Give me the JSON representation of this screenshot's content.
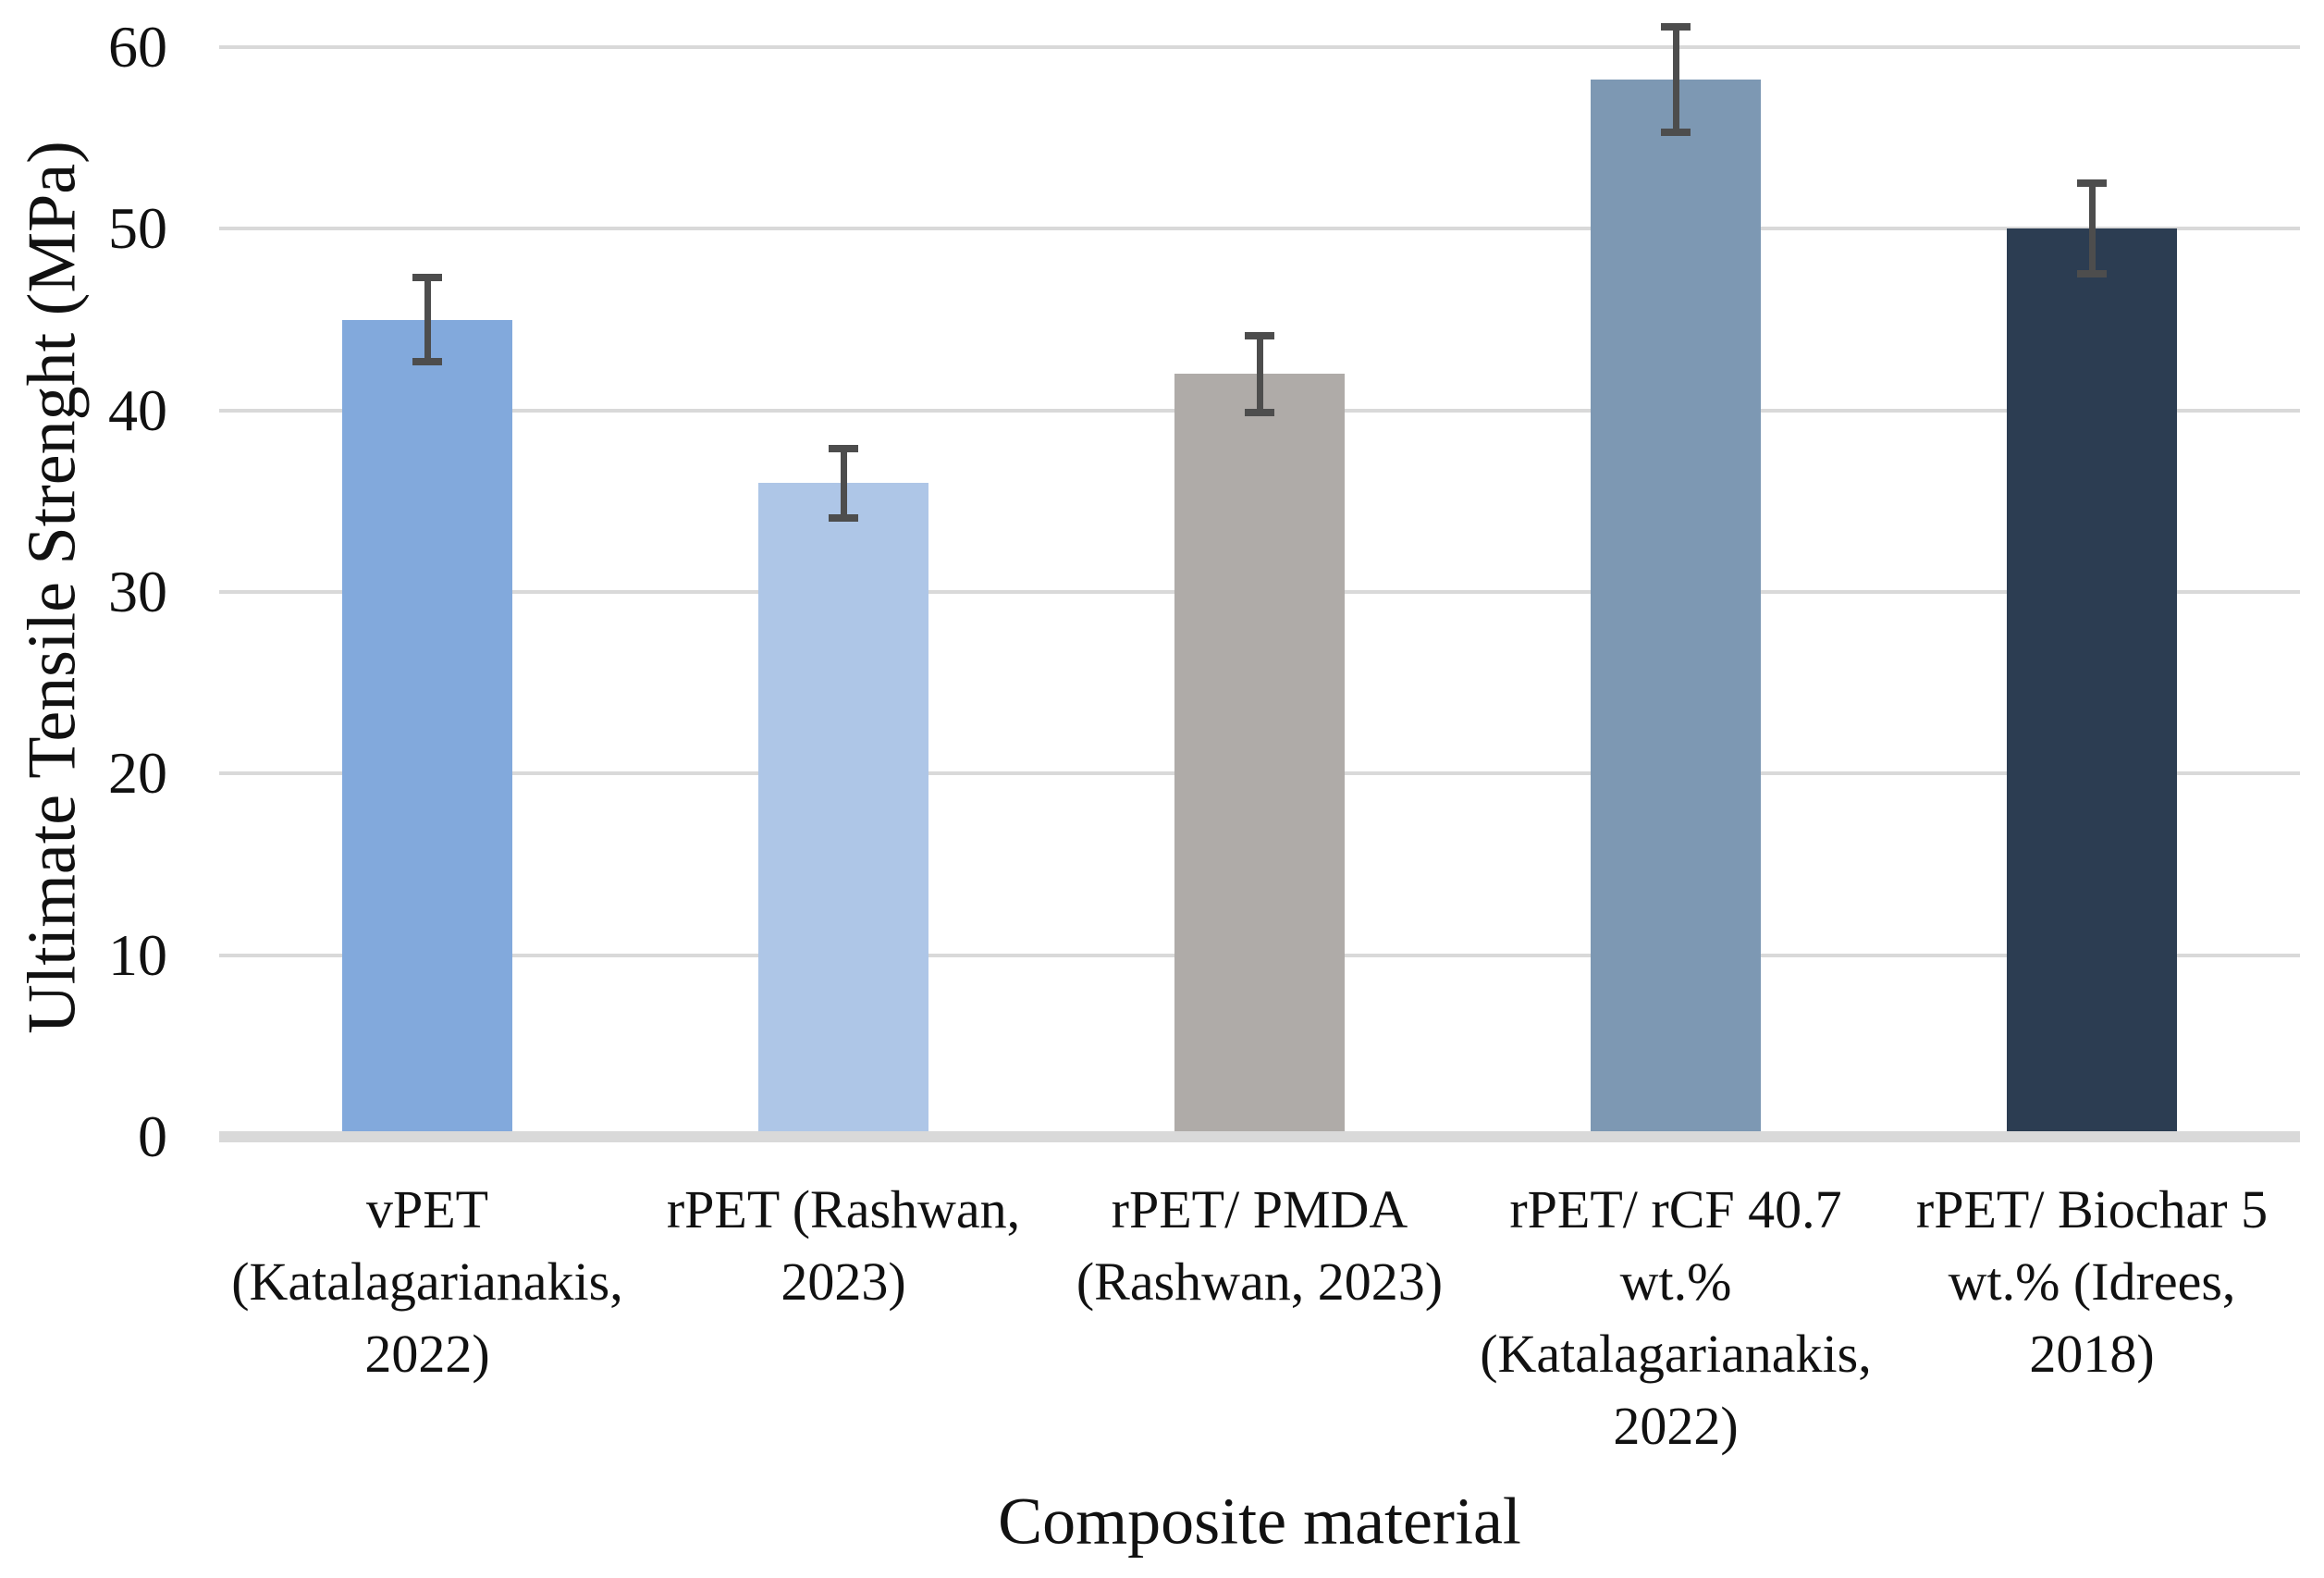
{
  "chart_data": {
    "type": "bar",
    "xlabel": "Composite material",
    "ylabel": "Ultimate Tensile Strenght (MPa)",
    "ylim": [
      0,
      60
    ],
    "yticks": [
      0,
      10,
      20,
      30,
      40,
      50,
      60
    ],
    "grid": true,
    "legend_position": "none",
    "categories": [
      "vPET (Katalagarianakis, 2022)",
      "rPET (Rashwan, 2023)",
      "rPET/ PMDA (Rashwan, 2023)",
      "rPET/ rCF 40.7 wt.% (Katalagarianakis, 2022)",
      "rPET/ Biochar 5 wt.% (Idrees, 2018)"
    ],
    "category_label_lines": [
      [
        "vPET",
        "(Katalagarianakis,",
        "2022)"
      ],
      [
        "rPET (Rashwan,",
        "2023)"
      ],
      [
        "rPET/ PMDA",
        "(Rashwan, 2023)"
      ],
      [
        "rPET/ rCF 40.7",
        "wt.%",
        "(Katalagarianakis,",
        "2022)"
      ],
      [
        "rPET/ Biochar 5",
        "wt.% (Idrees,",
        "2018)"
      ]
    ],
    "values": [
      45,
      36,
      42,
      58.2,
      50
    ],
    "error_values": [
      2.3,
      1.9,
      2.1,
      2.9,
      2.5
    ],
    "bar_colors": [
      "#82A9DC",
      "#AEC6E7",
      "#AFABA8",
      "#7D98B3",
      "#2C3D52"
    ],
    "error_bar_color": "#4D4D4D",
    "gridline_color": "#D9D9D9",
    "axis_line_color": "#D9D9D9",
    "text_color": "#111111",
    "background_color": "#FFFFFF"
  }
}
